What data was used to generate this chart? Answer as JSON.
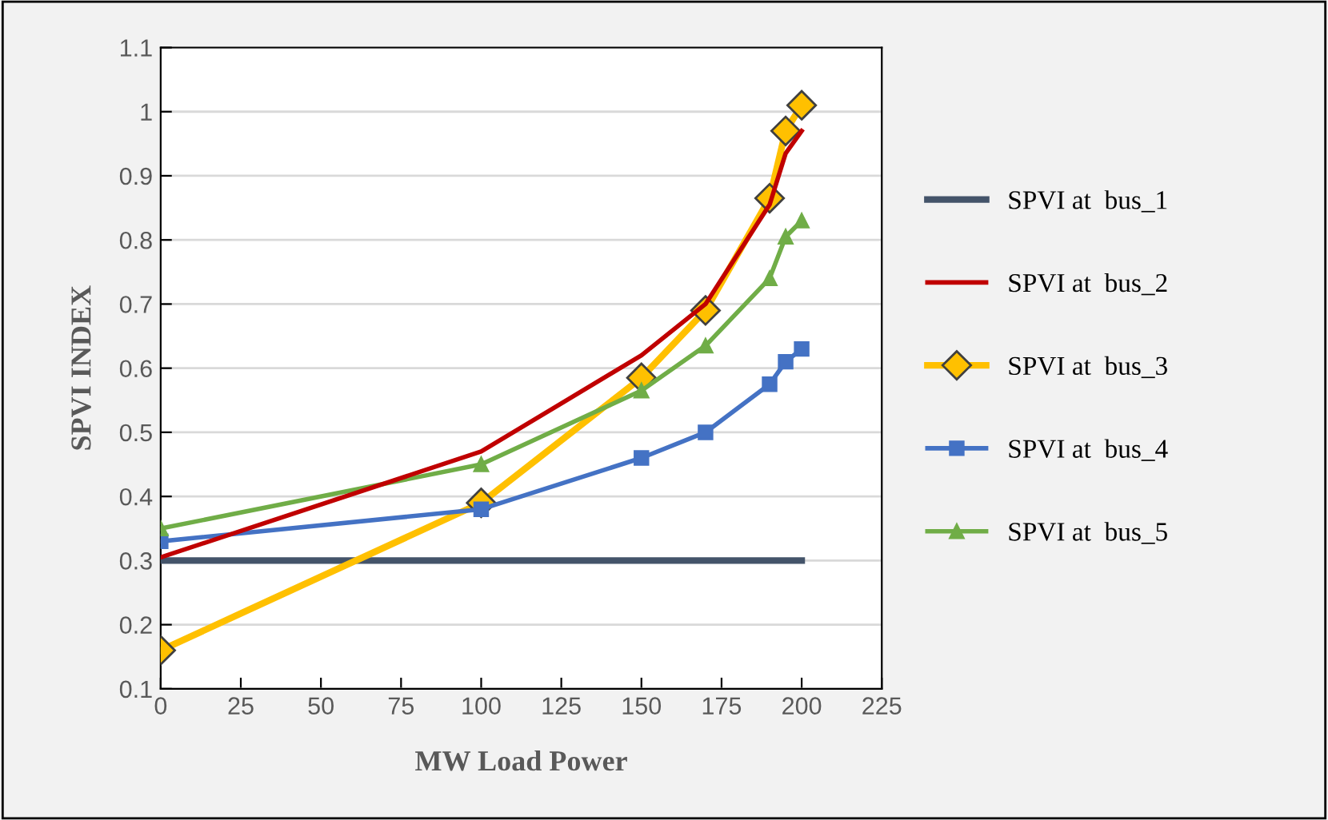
{
  "chart_data": {
    "type": "line",
    "xlabel": "MW Load Power",
    "ylabel": "SPVI INDEX",
    "x": [
      0,
      100,
      150,
      170,
      190,
      195,
      200
    ],
    "series": [
      {
        "name": "SPVI at  bus_1",
        "color": "#44546a",
        "marker": "none",
        "values": [
          0.3,
          0.3,
          0.3,
          0.3,
          0.3,
          0.3,
          0.3
        ]
      },
      {
        "name": "SPVI at  bus_2",
        "color": "#c00000",
        "marker": "none",
        "values": [
          0.305,
          0.47,
          0.62,
          0.7,
          0.855,
          0.935,
          0.97
        ]
      },
      {
        "name": "SPVI at  bus_3",
        "color": "#ffc000",
        "marker": "diamond",
        "values": [
          0.16,
          0.39,
          0.585,
          0.69,
          0.865,
          0.97,
          1.01
        ]
      },
      {
        "name": "SPVI at  bus_4",
        "color": "#4472c4",
        "marker": "square",
        "values": [
          0.33,
          0.38,
          0.46,
          0.5,
          0.575,
          0.61,
          0.63
        ]
      },
      {
        "name": "SPVI at  bus_5",
        "color": "#70ad47",
        "marker": "triangle",
        "values": [
          0.35,
          0.45,
          0.565,
          0.635,
          0.74,
          0.805,
          0.83
        ]
      }
    ],
    "xlim": [
      0,
      225
    ],
    "xticks": [
      0,
      25,
      50,
      75,
      100,
      125,
      150,
      175,
      200,
      225
    ],
    "ylim": [
      0.1,
      1.1
    ],
    "yticks": [
      0.1,
      0.2,
      0.3,
      0.4,
      0.5,
      0.6,
      0.7,
      0.8,
      0.9,
      1,
      1.1
    ],
    "grid": "y",
    "legend": "right",
    "line_style": "solid"
  }
}
